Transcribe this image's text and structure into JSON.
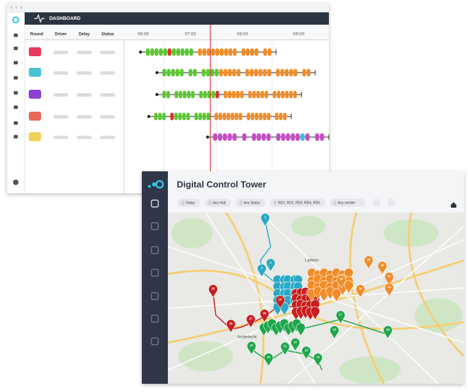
{
  "dashboard": {
    "title": "DASHBOARD",
    "columns": [
      "Round",
      "Driver",
      "Delay",
      "Status"
    ],
    "times": [
      "06:00",
      "07:00",
      "08:00",
      "09:00"
    ]
  },
  "control_tower": {
    "title": "Digital Control Tower",
    "filters": [
      "Today",
      "Any Hub",
      "Any Status",
      "RD1, RD2, RD3, RD4, RD5",
      "Any sender"
    ],
    "map_labels": [
      "Laeken",
      "Anderlecht"
    ],
    "pins": [
      {
        "label": "1",
        "color": "#2aa8c4"
      },
      {
        "label": "2",
        "color": "#2aa8c4"
      },
      {
        "label": "3",
        "color": "#2aa8c4"
      },
      {
        "label": "28",
        "color": "#c81e1e"
      },
      {
        "label": "20",
        "color": "#c81e1e"
      },
      {
        "label": "27",
        "color": "#c81e1e"
      },
      {
        "label": "30",
        "color": "#c81e1e"
      },
      {
        "label": "25",
        "color": "#c81e1e"
      },
      {
        "label": "30",
        "color": "#f28c28"
      },
      {
        "label": "40",
        "color": "#f28c28"
      },
      {
        "label": "42",
        "color": "#f28c28"
      },
      {
        "label": "43",
        "color": "#f28c28"
      },
      {
        "label": "26",
        "color": "#f28c28"
      },
      {
        "label": "36",
        "color": "#f28c28"
      },
      {
        "label": "17",
        "color": "#1fa64a"
      },
      {
        "label": "18",
        "color": "#1fa64a"
      },
      {
        "label": "14",
        "color": "#1fa64a"
      },
      {
        "label": "13",
        "color": "#1fa64a"
      },
      {
        "label": "16",
        "color": "#1fa64a"
      },
      {
        "label": "11",
        "color": "#1fa64a"
      },
      {
        "label": "12",
        "color": "#1fa64a"
      },
      {
        "label": "15",
        "color": "#1fa64a"
      },
      {
        "label": "10",
        "color": "#1fa64a"
      }
    ]
  }
}
